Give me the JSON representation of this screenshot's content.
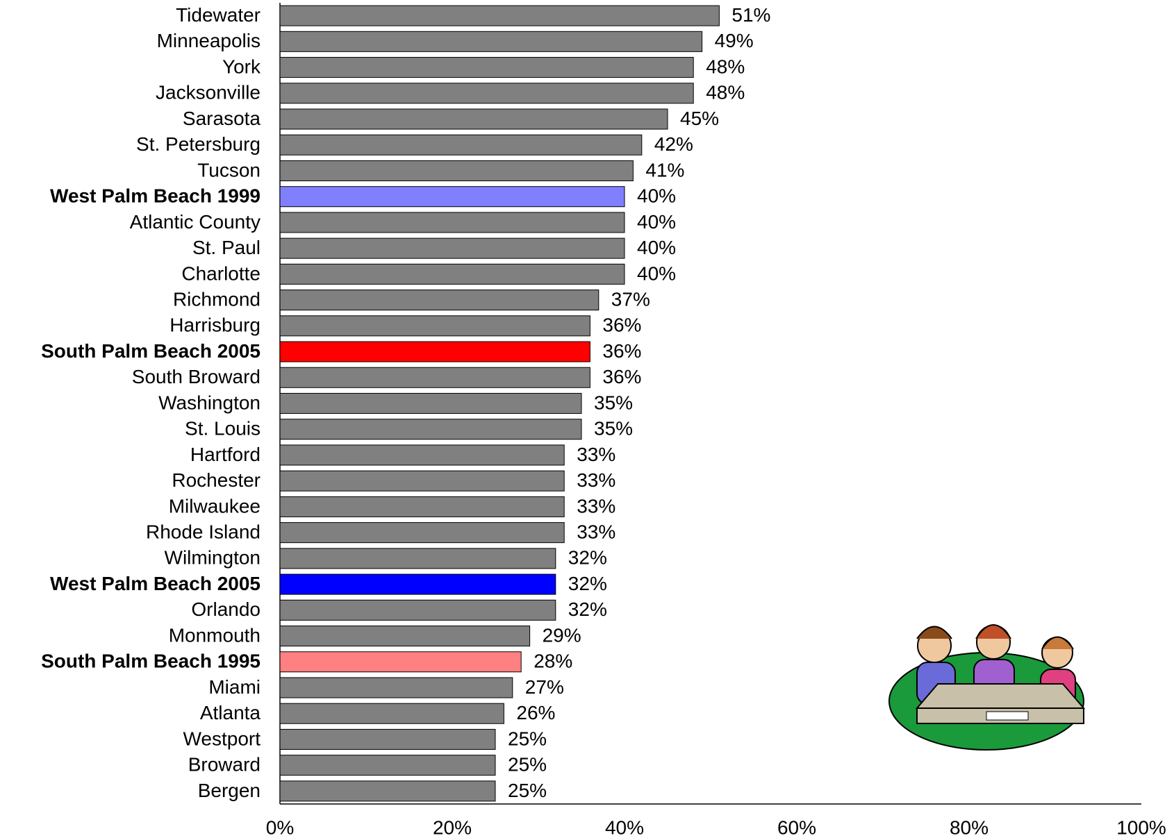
{
  "chart_data": {
    "type": "hbar",
    "categories": [
      "Tidewater",
      "Minneapolis",
      "York",
      "Jacksonville",
      "Sarasota",
      "St. Petersburg",
      "Tucson",
      "West Palm Beach 1999",
      "Atlantic County",
      "St. Paul",
      "Charlotte",
      "Richmond",
      "Harrisburg",
      "South Palm Beach 2005",
      "South Broward",
      "Washington",
      "St. Louis",
      "Hartford",
      "Rochester",
      "Milwaukee",
      "Rhode Island",
      "Wilmington",
      "West Palm Beach 2005",
      "Orlando",
      "Monmouth",
      "South Palm Beach 1995",
      "Miami",
      "Atlanta",
      "Westport",
      "Broward",
      "Bergen"
    ],
    "values": [
      51,
      49,
      48,
      48,
      45,
      42,
      41,
      40,
      40,
      40,
      40,
      37,
      36,
      36,
      36,
      35,
      35,
      33,
      33,
      33,
      33,
      32,
      32,
      32,
      29,
      28,
      27,
      26,
      25,
      25,
      25
    ],
    "value_labels": [
      "51%",
      "49%",
      "48%",
      "48%",
      "45%",
      "42%",
      "41%",
      "40%",
      "40%",
      "40%",
      "40%",
      "37%",
      "36%",
      "36%",
      "36%",
      "35%",
      "35%",
      "33%",
      "33%",
      "33%",
      "33%",
      "32%",
      "32%",
      "32%",
      "29%",
      "28%",
      "27%",
      "26%",
      "25%",
      "25%",
      "25%"
    ],
    "bar_colors": [
      "#808080",
      "#808080",
      "#808080",
      "#808080",
      "#808080",
      "#808080",
      "#808080",
      "#8080ff",
      "#808080",
      "#808080",
      "#808080",
      "#808080",
      "#808080",
      "#ff0000",
      "#808080",
      "#808080",
      "#808080",
      "#808080",
      "#808080",
      "#808080",
      "#808080",
      "#808080",
      "#0000ff",
      "#808080",
      "#808080",
      "#ff8080",
      "#808080",
      "#808080",
      "#808080",
      "#808080",
      "#808080"
    ],
    "label_colors": [
      "#000000",
      "#000000",
      "#000000",
      "#000000",
      "#000000",
      "#000000",
      "#000000",
      "#8080ff",
      "#000000",
      "#000000",
      "#000000",
      "#000000",
      "#000000",
      "#ff0000",
      "#000000",
      "#000000",
      "#000000",
      "#000000",
      "#000000",
      "#000000",
      "#000000",
      "#000000",
      "#0000ff",
      "#000000",
      "#000000",
      "#ff8080",
      "#ff0000",
      "#000000",
      "#000000",
      "#ff0000",
      "#000000"
    ],
    "label_bold": [
      false,
      false,
      false,
      false,
      false,
      false,
      false,
      true,
      false,
      false,
      false,
      false,
      false,
      true,
      false,
      false,
      false,
      false,
      false,
      false,
      false,
      false,
      true,
      false,
      false,
      true,
      false,
      false,
      false,
      false,
      false
    ],
    "xlim": [
      0,
      100
    ],
    "xticks": [
      {
        "value": 0,
        "label": "0%"
      },
      {
        "value": 20,
        "label": "20%"
      },
      {
        "value": 40,
        "label": "40%"
      },
      {
        "value": 60,
        "label": "60%"
      },
      {
        "value": 80,
        "label": "80%"
      },
      {
        "value": 100,
        "label": "100%"
      }
    ],
    "grid": false
  }
}
